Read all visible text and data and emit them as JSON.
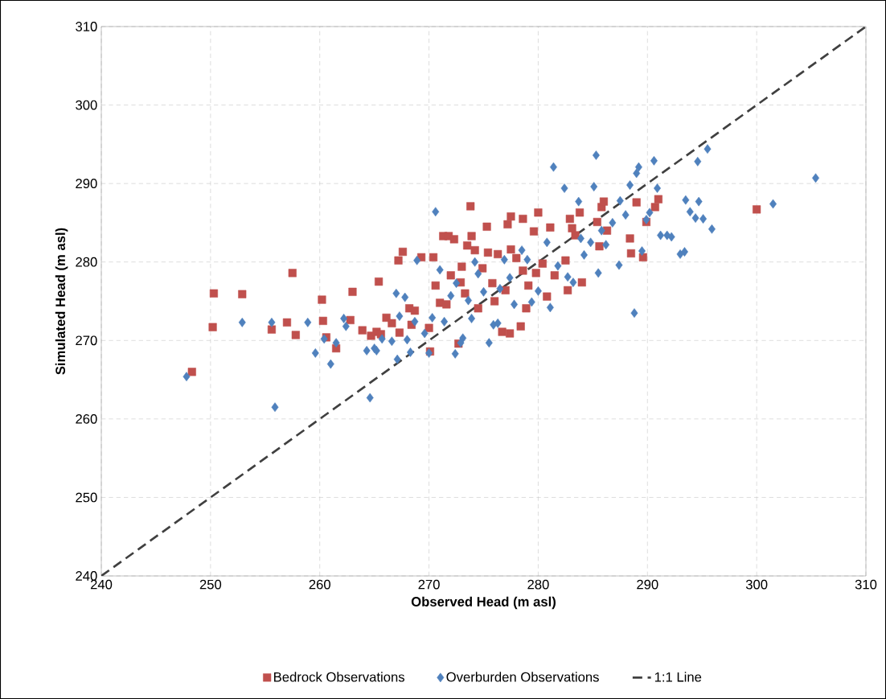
{
  "chart_data": {
    "type": "scatter",
    "xlabel": "Observed Head (m asl)",
    "ylabel": "Simulated Head (m asl)",
    "xlim": [
      240,
      310
    ],
    "ylim": [
      240,
      310
    ],
    "xticks": [
      240,
      250,
      260,
      270,
      280,
      290,
      300,
      310
    ],
    "yticks": [
      240,
      250,
      260,
      270,
      280,
      290,
      300,
      310
    ],
    "grid": true,
    "legend": "bottom",
    "series": [
      {
        "name": "Bedrock Observations",
        "color": "#c0504d",
        "marker": "square",
        "x": [
          248.3,
          250.2,
          250.3,
          252.9,
          255.6,
          257,
          257.5,
          257.8,
          260.2,
          260.3,
          260.6,
          261.5,
          262.8,
          263,
          263.9,
          264.7,
          265.2,
          265.4,
          265.6,
          266.1,
          266.6,
          267.2,
          267.3,
          267.6,
          268.2,
          268.4,
          268.7,
          269.3,
          270,
          270.1,
          270.4,
          270.6,
          271,
          271.3,
          271.6,
          271.8,
          272,
          272.3,
          272.7,
          272.9,
          273,
          273.3,
          273.5,
          273.9,
          273.8,
          274.2,
          274.5,
          274.9,
          275.3,
          275.4,
          275.8,
          276,
          276.3,
          276.7,
          277,
          277.2,
          277.4,
          277.5,
          277.5,
          278,
          278.4,
          278.6,
          278.6,
          278.9,
          279.1,
          279.6,
          279.8,
          280,
          280.4,
          280.8,
          281.1,
          281.5,
          282.5,
          282.7,
          282.9,
          283.1,
          283.4,
          283.8,
          284,
          285.4,
          285.8,
          286,
          286.3,
          285.6,
          288.4,
          288.5,
          289,
          289.6,
          289.9,
          290.7,
          291,
          300
        ],
        "values": [
          266,
          271.7,
          276,
          275.9,
          271.4,
          272.3,
          278.6,
          270.7,
          275.2,
          272.5,
          270.4,
          269,
          272.6,
          276.2,
          271.3,
          270.6,
          271.1,
          277.5,
          270.8,
          272.9,
          272.2,
          280.2,
          271,
          281.3,
          274.1,
          272,
          273.8,
          280.6,
          271.6,
          268.6,
          280.6,
          277,
          274.8,
          283.3,
          274.6,
          283.3,
          278.3,
          282.9,
          269.6,
          277.4,
          279.4,
          276,
          282.1,
          283.3,
          287.1,
          281.5,
          274.1,
          279.2,
          284.5,
          281.2,
          277.3,
          275,
          281,
          271.1,
          276.4,
          284.8,
          270.9,
          285.8,
          281.6,
          280.5,
          271.8,
          285.5,
          278.9,
          274.1,
          277,
          283.9,
          278.6,
          286.3,
          279.8,
          275.6,
          284.4,
          278.3,
          280.2,
          276.4,
          285.5,
          284.3,
          283.4,
          286.3,
          277.4,
          285.1,
          287,
          287.7,
          284,
          282,
          283,
          281.1,
          287.6,
          280.6,
          285.1,
          287,
          288,
          286.7
        ]
      },
      {
        "name": "Overburden Observations",
        "color": "#4f81bd",
        "marker": "diamond",
        "x": [
          247.8,
          252.9,
          255.6,
          255.9,
          258.9,
          259.6,
          260.4,
          261,
          261.5,
          262.2,
          262.4,
          264.3,
          264.6,
          265,
          265.2,
          265.7,
          266.6,
          267,
          267.1,
          267.3,
          267.8,
          268,
          268.3,
          268.7,
          268.9,
          269.6,
          270,
          270.3,
          270.6,
          271,
          271.4,
          272,
          272.4,
          272.5,
          272.9,
          273.1,
          273.6,
          273.9,
          274.2,
          274.5,
          275,
          275.5,
          275.9,
          276.3,
          276.5,
          276.9,
          277.4,
          277.8,
          278.5,
          279,
          279.4,
          280,
          280.8,
          281.1,
          281.4,
          281.8,
          282.4,
          282.7,
          283.2,
          283.7,
          283.9,
          284.2,
          284.8,
          285.1,
          285.3,
          285.5,
          285.8,
          286.2,
          286.8,
          287.4,
          287.5,
          288,
          288.4,
          288.8,
          289,
          289.2,
          289.5,
          289.9,
          290.2,
          290.6,
          290.9,
          291.2,
          291.8,
          292.2,
          293,
          293.4,
          293.5,
          293.9,
          294.4,
          294.6,
          294.7,
          295.1,
          295.5,
          295.9,
          301.5,
          305.4
        ],
        "values": [
          265.4,
          272.3,
          272.3,
          261.5,
          272.3,
          268.4,
          270.2,
          267,
          269.7,
          272.8,
          271.8,
          268.7,
          262.7,
          269,
          268.7,
          270.2,
          269.9,
          276,
          267.6,
          273.1,
          275.5,
          270.1,
          268.5,
          272.4,
          280.2,
          270.9,
          268.4,
          272.9,
          286.4,
          279,
          272.4,
          275.7,
          268.3,
          277.3,
          269.7,
          270.3,
          275.1,
          272.8,
          280,
          278.5,
          276.2,
          269.7,
          272,
          272.2,
          276.6,
          280.3,
          278,
          274.6,
          281.5,
          280.3,
          274.9,
          276.3,
          282.5,
          274.2,
          292.1,
          279.5,
          289.4,
          278.1,
          277.4,
          287.7,
          283,
          280.9,
          282.5,
          289.6,
          293.6,
          278.6,
          284,
          282.2,
          285,
          279.6,
          287.8,
          286,
          289.8,
          273.5,
          291.3,
          292.1,
          281.4,
          285.4,
          286.3,
          292.9,
          289.4,
          283.4,
          283.4,
          283.2,
          281,
          281.3,
          287.9,
          286.4,
          285.6,
          292.8,
          287.7,
          285.5,
          294.4,
          284.2,
          287.4,
          290.7
        ]
      },
      {
        "name": "1:1 Line",
        "type": "line",
        "color": "#404040",
        "line_style": "dashed",
        "marker": "none",
        "x": [
          240,
          310
        ],
        "values": [
          240,
          310
        ]
      }
    ]
  }
}
